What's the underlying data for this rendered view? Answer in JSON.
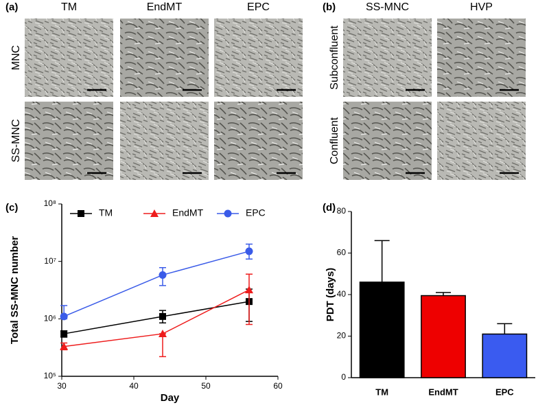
{
  "panels": [
    {
      "label": "(a)",
      "columns": [
        "TM",
        "EndMT",
        "EPC"
      ],
      "rows": [
        "MNC",
        "SS-MNC"
      ]
    },
    {
      "label": "(b)",
      "columns": [
        "SS-MNC",
        "HVP"
      ],
      "rows": [
        "Subconfluent",
        "Confluent"
      ]
    }
  ],
  "chart_data": [
    {
      "type": "line",
      "panel_label": "(c)",
      "xlabel": "Day",
      "ylabel": "Total SS-MNC number",
      "xlim": [
        30,
        60
      ],
      "xticks": [
        30,
        40,
        50,
        60
      ],
      "log_y": true,
      "ylim": [
        100000,
        100000000
      ],
      "yticks": [
        {
          "value": 100000,
          "label": "10⁵"
        },
        {
          "value": 1000000,
          "label": "10⁶"
        },
        {
          "value": 10000000,
          "label": "10⁷"
        },
        {
          "value": 100000000,
          "label": "10⁸"
        }
      ],
      "legend": "top",
      "series": [
        {
          "name": "TM",
          "color": "#000000",
          "marker": "square",
          "x": [
            30.3,
            44,
            56
          ],
          "values": [
            550000,
            1100000,
            2000000
          ],
          "lower": [
            480000,
            850000,
            900000
          ],
          "upper": [
            620000,
            1400000,
            3300000
          ]
        },
        {
          "name": "EndMT",
          "color": "#ee1c1c",
          "marker": "triangle",
          "x": [
            30.3,
            44,
            56
          ],
          "values": [
            330000,
            550000,
            3200000
          ],
          "lower": [
            290000,
            220000,
            800000
          ],
          "upper": [
            380000,
            550000,
            6000000
          ]
        },
        {
          "name": "EPC",
          "color": "#3a5be8",
          "marker": "circle",
          "x": [
            30.3,
            44,
            56
          ],
          "values": [
            1100000,
            5800000,
            15000000
          ],
          "lower": [
            1000000,
            3800000,
            11000000
          ],
          "upper": [
            1700000,
            7800000,
            20000000
          ]
        }
      ]
    },
    {
      "type": "bar",
      "panel_label": "(d)",
      "ylabel": "PDT (days)",
      "categories": [
        "TM",
        "EndMT",
        "EPC"
      ],
      "values": [
        46,
        39.5,
        21
      ],
      "errors": [
        20,
        1.5,
        5
      ],
      "colors": [
        "#000000",
        "#ee0000",
        "#3a5bf0"
      ],
      "ylim": [
        0,
        80
      ],
      "yticks": [
        0,
        20,
        40,
        60,
        80
      ]
    }
  ]
}
